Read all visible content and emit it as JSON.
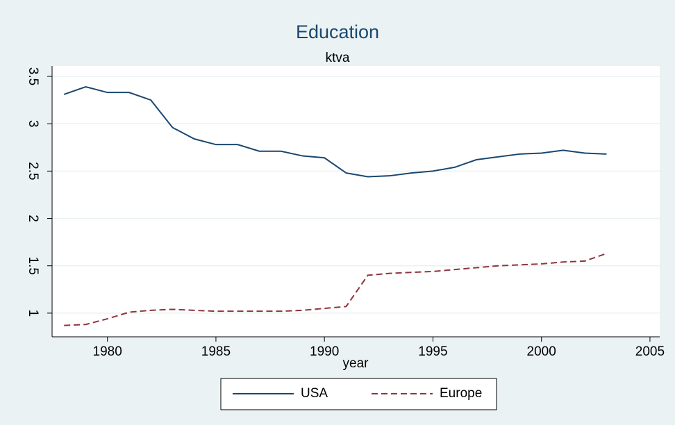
{
  "chart_data": {
    "type": "line",
    "title": "Education",
    "subtitle": "ktva",
    "x_label": "year",
    "x": [
      1978,
      1979,
      1980,
      1981,
      1982,
      1983,
      1984,
      1985,
      1986,
      1987,
      1988,
      1989,
      1990,
      1991,
      1992,
      1993,
      1994,
      1995,
      1996,
      1997,
      1998,
      1999,
      2000,
      2001,
      2002,
      2003
    ],
    "series": [
      {
        "name": "USA",
        "color": "#1a476f",
        "dash": false,
        "values": [
          3.31,
          3.39,
          3.33,
          3.33,
          3.25,
          2.96,
          2.84,
          2.78,
          2.78,
          2.71,
          2.71,
          2.66,
          2.64,
          2.48,
          2.44,
          2.45,
          2.48,
          2.5,
          2.54,
          2.62,
          2.65,
          2.68,
          2.69,
          2.72,
          2.69,
          2.68
        ]
      },
      {
        "name": "Europe",
        "color": "#90353b",
        "dash": true,
        "values": [
          0.87,
          0.88,
          0.94,
          1.01,
          1.03,
          1.04,
          1.03,
          1.02,
          1.02,
          1.02,
          1.02,
          1.03,
          1.05,
          1.07,
          1.4,
          1.42,
          1.43,
          1.44,
          1.46,
          1.48,
          1.5,
          1.51,
          1.52,
          1.54,
          1.55,
          1.63
        ]
      }
    ],
    "xlim": [
      1977.45,
      2005.45
    ],
    "xticks": [
      1980,
      1985,
      1990,
      1995,
      2000,
      2005
    ],
    "ylim": [
      0.75,
      3.61
    ],
    "yticks": [
      1,
      1.5,
      2,
      2.5,
      3,
      3.5
    ],
    "grid": true
  }
}
